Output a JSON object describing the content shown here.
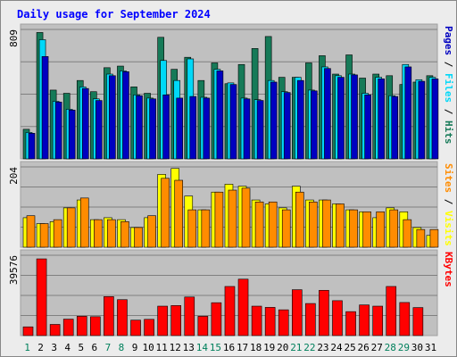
{
  "chart_data": [
    {
      "id": "pages-files-hits",
      "type": "bar",
      "title": "Daily usage for September 2024",
      "categories": [
        "1",
        "2",
        "3",
        "4",
        "5",
        "6",
        "7",
        "8",
        "9",
        "10",
        "11",
        "12",
        "13",
        "14",
        "15",
        "16",
        "17",
        "18",
        "19",
        "20",
        "21",
        "22",
        "23",
        "24",
        "25",
        "26",
        "27",
        "28",
        "29",
        "30",
        "31"
      ],
      "ymax_label": "809",
      "ylim": [
        0,
        809
      ],
      "grid": true,
      "side_label": [
        "Pages",
        "Files",
        "Hits"
      ],
      "series": [
        {
          "name": "Hits",
          "color": "#167a58",
          "values": [
            185,
            790,
            430,
            410,
            490,
            420,
            570,
            580,
            450,
            410,
            760,
            560,
            635,
            490,
            600,
            470,
            590,
            690,
            765,
            510,
            510,
            600,
            645,
            530,
            650,
            505,
            530,
            520,
            465,
            480,
            520
          ]
        },
        {
          "name": "Files",
          "color": "#00d8f8",
          "values": [
            165,
            745,
            360,
            310,
            450,
            375,
            530,
            550,
            400,
            380,
            615,
            490,
            625,
            385,
            560,
            475,
            380,
            370,
            490,
            420,
            510,
            430,
            575,
            520,
            530,
            410,
            510,
            395,
            590,
            495,
            510
          ]
        },
        {
          "name": "Pages",
          "color": "#0000c0",
          "values": [
            160,
            640,
            355,
            305,
            440,
            365,
            520,
            545,
            395,
            375,
            400,
            380,
            390,
            380,
            550,
            465,
            375,
            365,
            480,
            415,
            490,
            425,
            565,
            510,
            525,
            400,
            500,
            390,
            575,
            485,
            500
          ]
        }
      ]
    },
    {
      "id": "sites-visits",
      "type": "bar",
      "categories": [
        "1",
        "2",
        "3",
        "4",
        "5",
        "6",
        "7",
        "8",
        "9",
        "10",
        "11",
        "12",
        "13",
        "14",
        "15",
        "16",
        "17",
        "18",
        "19",
        "20",
        "21",
        "22",
        "23",
        "24",
        "25",
        "26",
        "27",
        "28",
        "29",
        "30",
        "31"
      ],
      "ymax_label": "204",
      "ylim": [
        0,
        204
      ],
      "grid": true,
      "side_label": [
        "Sites",
        "Visits"
      ],
      "series": [
        {
          "name": "Visits",
          "color": "#ffff00",
          "values": [
            75,
            60,
            65,
            100,
            120,
            70,
            75,
            70,
            50,
            75,
            185,
            200,
            130,
            95,
            140,
            160,
            155,
            120,
            110,
            100,
            155,
            120,
            120,
            110,
            95,
            90,
            75,
            100,
            90,
            50,
            30
          ]
        },
        {
          "name": "Sites",
          "color": "#ff8c00",
          "values": [
            80,
            60,
            70,
            100,
            125,
            70,
            70,
            65,
            50,
            80,
            175,
            170,
            95,
            95,
            140,
            145,
            150,
            115,
            115,
            95,
            140,
            115,
            120,
            110,
            95,
            90,
            90,
            95,
            70,
            45,
            45
          ]
        }
      ]
    },
    {
      "id": "kbytes",
      "type": "bar",
      "categories": [
        "1",
        "2",
        "3",
        "4",
        "5",
        "6",
        "7",
        "8",
        "9",
        "10",
        "11",
        "12",
        "13",
        "14",
        "15",
        "16",
        "17",
        "18",
        "19",
        "20",
        "21",
        "22",
        "23",
        "24",
        "25",
        "26",
        "27",
        "28",
        "29",
        "30",
        "31"
      ],
      "ymax_label": "39576",
      "ylim": [
        0,
        39576
      ],
      "grid": true,
      "side_label": [
        "KBytes"
      ],
      "series": [
        {
          "name": "KBytes",
          "color": "#ff0000",
          "values": [
            4300,
            37800,
            5500,
            8100,
            9500,
            9300,
            19200,
            17700,
            7600,
            8000,
            14500,
            14800,
            19000,
            9500,
            16200,
            24200,
            27800,
            14500,
            13900,
            12700,
            22600,
            15800,
            22300,
            17200,
            11800,
            15100,
            14500,
            24200,
            16300,
            13800,
            0
          ]
        }
      ]
    }
  ],
  "colors": {
    "title": "#0000ff",
    "plot_bg": "#c0c0c0",
    "frame": "#a0a0a0",
    "grid": "#808080",
    "weekend_day": "#00805c",
    "weekday": "#000000",
    "page_bg": "#ececec"
  },
  "weekend_days": [
    "1",
    "7",
    "8",
    "14",
    "15",
    "21",
    "22",
    "28",
    "29"
  ]
}
